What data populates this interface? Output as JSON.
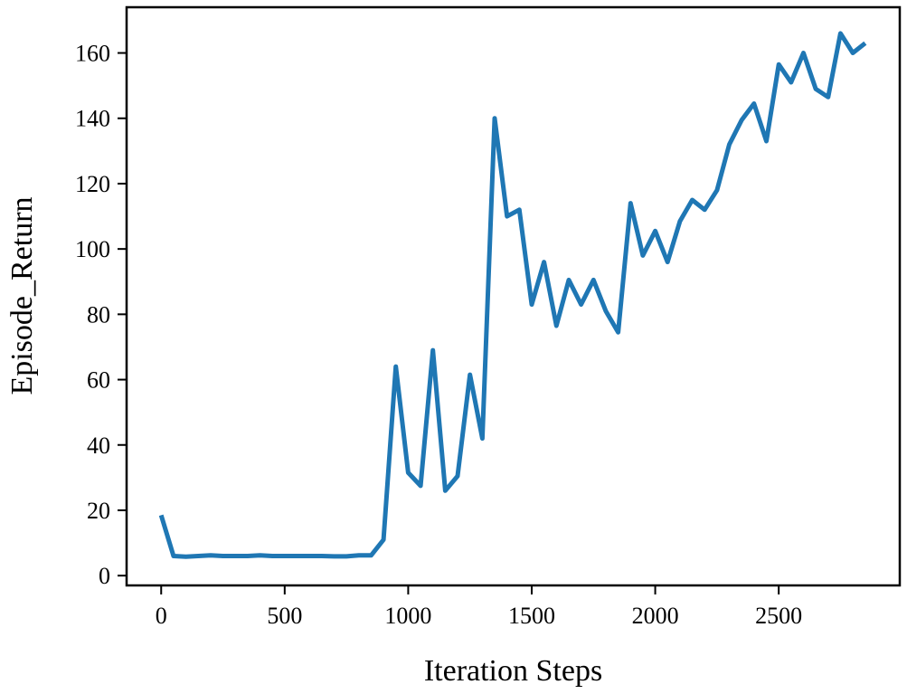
{
  "chart_data": {
    "type": "line",
    "xlabel": "Iteration Steps",
    "ylabel": "Episode_Return",
    "xlim": [
      -140,
      2990
    ],
    "ylim": [
      -3,
      174
    ],
    "xticks": [
      0,
      500,
      1000,
      1500,
      2000,
      2500
    ],
    "yticks": [
      0,
      20,
      40,
      60,
      80,
      100,
      120,
      140,
      160
    ],
    "grid": false,
    "series": [
      {
        "color": "#1f77b4",
        "x": [
          0,
          50,
          100,
          150,
          200,
          250,
          300,
          350,
          400,
          450,
          500,
          550,
          600,
          650,
          700,
          750,
          800,
          850,
          900,
          950,
          1000,
          1050,
          1100,
          1150,
          1200,
          1250,
          1300,
          1350,
          1400,
          1450,
          1500,
          1550,
          1600,
          1650,
          1700,
          1750,
          1800,
          1850,
          1900,
          1950,
          2000,
          2050,
          2100,
          2150,
          2200,
          2250,
          2300,
          2350,
          2400,
          2450,
          2500,
          2550,
          2600,
          2650,
          2700,
          2750,
          2800,
          2850
        ],
        "y": [
          18.5,
          6,
          5.8,
          6,
          6.2,
          6,
          6,
          6,
          6.2,
          6,
          6,
          6,
          6,
          6,
          5.9,
          5.9,
          6.2,
          6.2,
          11,
          64,
          31.5,
          27.5,
          69,
          26,
          30.5,
          61.5,
          42,
          140,
          110,
          112,
          83,
          96,
          76.5,
          90.5,
          83,
          90.5,
          81,
          74.5,
          114,
          98,
          105.5,
          96,
          108.5,
          115,
          112,
          118,
          132,
          139.5,
          144.5,
          133,
          156.5,
          151,
          160,
          149,
          146.5,
          166,
          160,
          163
        ]
      }
    ]
  }
}
